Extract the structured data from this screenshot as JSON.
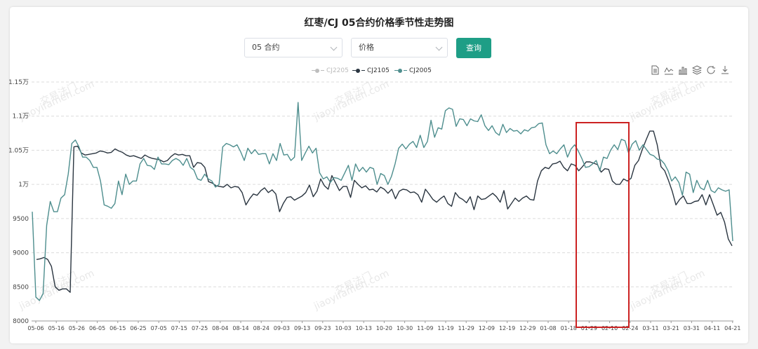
{
  "chart_data": {
    "type": "line",
    "title": "红枣/CJ 05合约价格季节性走势图",
    "y_ticks": [
      "8000",
      "8500",
      "9000",
      "9500",
      "1万",
      "1.05万",
      "1.1万",
      "1.15万"
    ],
    "y_tick_values": [
      8000,
      8500,
      9000,
      9500,
      10000,
      10500,
      11000,
      11500
    ],
    "ylim": [
      8000,
      11500
    ],
    "x_ticks": [
      "05-06",
      "05-16",
      "05-26",
      "06-05",
      "06-15",
      "06-25",
      "07-05",
      "07-15",
      "07-25",
      "08-04",
      "08-14",
      "08-24",
      "09-03",
      "09-13",
      "09-23",
      "10-03",
      "10-13",
      "10-20",
      "10-30",
      "11-09",
      "11-19",
      "11-29",
      "12-09",
      "12-19",
      "12-29",
      "01-08",
      "01-18",
      "01-29",
      "02-10",
      "02-24",
      "03-11",
      "03-21",
      "03-31",
      "04-11",
      "04-21"
    ],
    "grid": true,
    "legend_position": "top-center",
    "series": [
      {
        "name": "CJ2205",
        "color": "#bdbdbd",
        "values": []
      },
      {
        "name": "CJ2105",
        "color": "#2a3540",
        "values": [
          8900,
          8910,
          8930,
          8900,
          8800,
          8500,
          8450,
          8470,
          8470,
          8420,
          10550,
          10560,
          10460,
          10430,
          10440,
          10450,
          10460,
          10490,
          10480,
          10460,
          10470,
          10520,
          10490,
          10470,
          10430,
          10410,
          10420,
          10400,
          10380,
          10430,
          10400,
          10380,
          10370,
          10360,
          10330,
          10350,
          10410,
          10450,
          10430,
          10440,
          10420,
          10420,
          10250,
          10320,
          10310,
          10250,
          10040,
          10020,
          9980,
          9970,
          9960,
          10000,
          9950,
          9970,
          9960,
          9880,
          9700,
          9790,
          9860,
          9840,
          9910,
          9950,
          9880,
          9920,
          9860,
          9600,
          9720,
          9810,
          9820,
          9770,
          9800,
          9830,
          9880,
          9990,
          9820,
          9900,
          10080,
          9980,
          9930,
          10130,
          10020,
          9910,
          9970,
          9970,
          9810,
          10060,
          10000,
          9950,
          9980,
          9920,
          9930,
          9890,
          9960,
          9930,
          9870,
          9930,
          9790,
          9900,
          9930,
          9920,
          9880,
          9890,
          9850,
          9740,
          9930,
          9860,
          9780,
          9740,
          9790,
          9830,
          9720,
          9680,
          9880,
          9810,
          9780,
          9730,
          9820,
          9630,
          9830,
          9780,
          9790,
          9830,
          9870,
          9820,
          9740,
          9910,
          9640,
          9720,
          9800,
          9750,
          9800,
          9830,
          9780,
          9770,
          10050,
          10200,
          10250,
          10230,
          10300,
          10310,
          10340,
          10250,
          10200,
          10300,
          10280,
          10200,
          10260,
          10330,
          10330,
          10310,
          10290,
          10180,
          10230,
          10220,
          10050,
          10000,
          10000,
          10080,
          10050,
          10090,
          10280,
          10350,
          10510,
          10650,
          10780,
          10780,
          10580,
          10260,
          10200,
          10060,
          9900,
          9700,
          9780,
          9830,
          9720,
          9720,
          9750,
          9760,
          9850,
          9700,
          9850,
          9700,
          9550,
          9590,
          9450,
          9200,
          9100
        ]
      },
      {
        "name": "CJ2005",
        "color": "#4e8e8e",
        "values": [
          9600,
          8350,
          8300,
          8400,
          9400,
          9750,
          9600,
          9600,
          9800,
          9850,
          10150,
          10600,
          10650,
          10550,
          10400,
          10400,
          10350,
          10250,
          10250,
          10050,
          9700,
          9680,
          9650,
          9720,
          10050,
          9850,
          10150,
          10000,
          10050,
          10050,
          10300,
          10380,
          10280,
          10270,
          10220,
          10400,
          10300,
          10300,
          10290,
          10350,
          10380,
          10350,
          10280,
          10380,
          10250,
          10210,
          10080,
          10060,
          10150,
          10080,
          10050,
          9960,
          10000,
          10550,
          10600,
          10580,
          10550,
          10580,
          10480,
          10350,
          10530,
          10450,
          10510,
          10440,
          10450,
          10450,
          10300,
          10450,
          10350,
          10600,
          10430,
          10440,
          10350,
          10400,
          11200,
          10350,
          10460,
          10560,
          10460,
          10530,
          10170,
          10080,
          10110,
          10030,
          10100,
          10090,
          10060,
          10170,
          10280,
          10060,
          10300,
          10190,
          10250,
          10180,
          10250,
          10230,
          10000,
          10160,
          10130,
          10000,
          10120,
          10300,
          10530,
          10590,
          10520,
          10590,
          10630,
          10540,
          10720,
          10540,
          10630,
          10940,
          10690,
          10830,
          10810,
          11080,
          11120,
          11100,
          10850,
          10960,
          10950,
          10860,
          10960,
          10930,
          10920,
          11020,
          10860,
          10790,
          10860,
          10760,
          10720,
          10880,
          10760,
          10820,
          10780,
          10790,
          10740,
          10800,
          10780,
          10830,
          10840,
          10890,
          10900,
          10580,
          10450,
          10490,
          10450,
          10520,
          10580,
          10400,
          10520,
          10580,
          10490,
          10380,
          10250,
          10260,
          10300,
          10350,
          10200,
          10400,
          10380,
          10500,
          10580,
          10510,
          10660,
          10640,
          10460,
          10590,
          10640,
          10500,
          10580,
          10510,
          10440,
          10420,
          10370,
          10360,
          10300,
          10200,
          10050,
          10110,
          10030,
          9840,
          10180,
          10150,
          9880,
          10060,
          9950,
          9920,
          10060,
          9910,
          9880,
          9950,
          9920,
          9900,
          9920,
          9170
        ]
      }
    ]
  },
  "controls": {
    "contract_select": "05 合约",
    "metric_select": "价格",
    "query_button": "查询"
  },
  "toolbar_icons": [
    "data-view-icon",
    "line-chart-icon",
    "bar-chart-icon",
    "stack-icon",
    "restore-icon",
    "download-icon"
  ],
  "watermark": [
    "交易法门",
    "jiaoyifamen.com"
  ]
}
